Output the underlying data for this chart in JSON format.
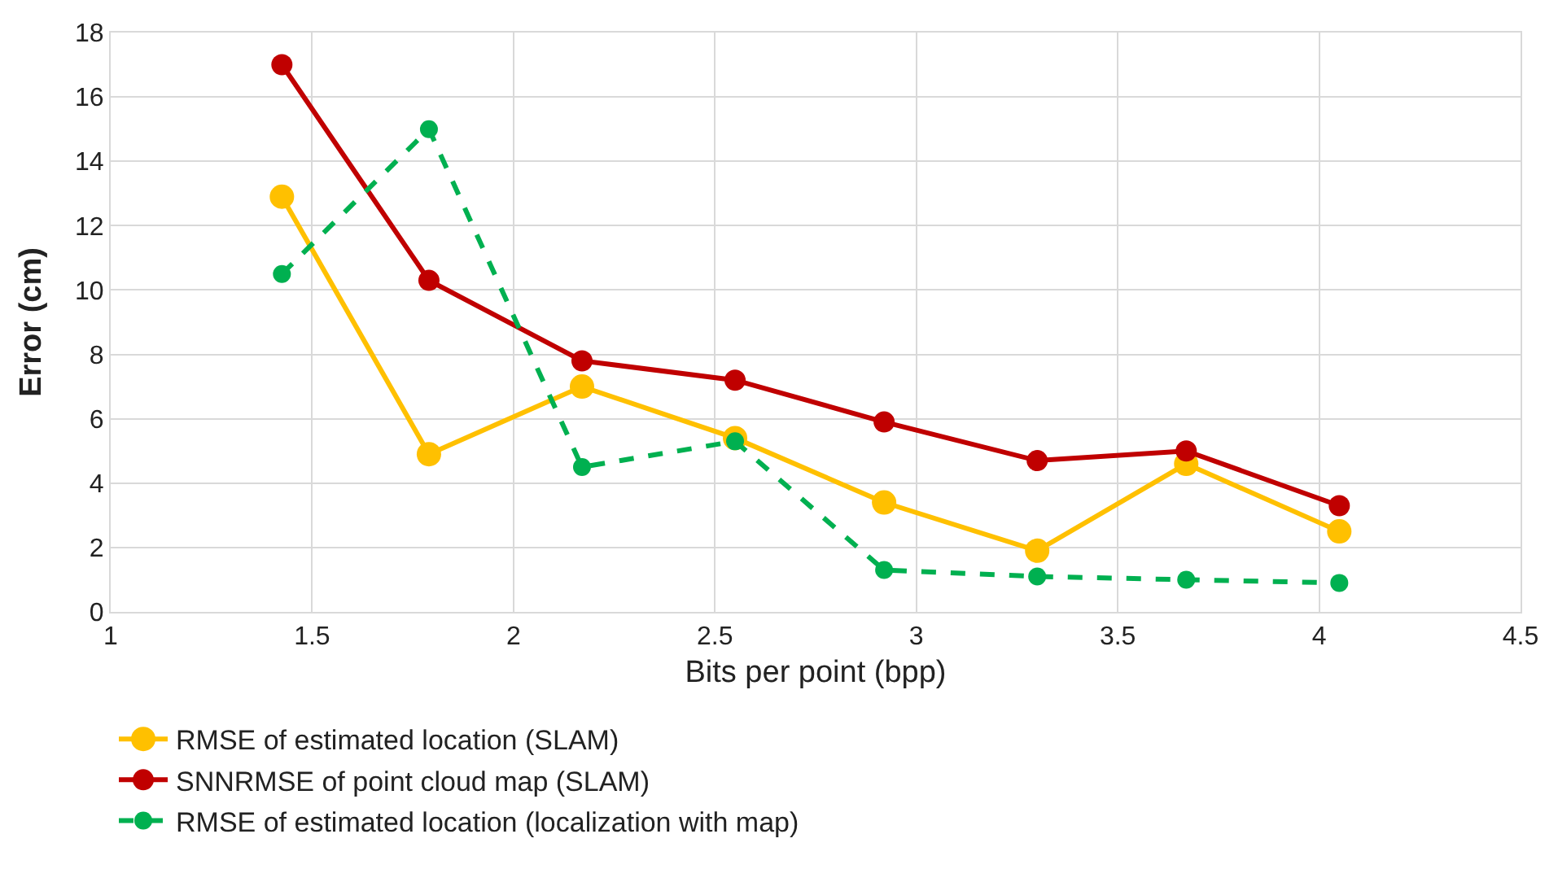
{
  "chart_data": {
    "type": "line",
    "xlabel": "Bits per point (bpp)",
    "ylabel": "Error (cm)",
    "x": [
      1.425,
      1.79,
      2.17,
      2.55,
      2.92,
      3.3,
      3.67,
      4.05
    ],
    "series": [
      {
        "name": "RMSE of estimated location (SLAM)",
        "color": "#ffc000",
        "values": [
          12.9,
          4.9,
          7.0,
          5.4,
          3.4,
          1.9,
          4.6,
          2.5
        ],
        "line_style": "solid"
      },
      {
        "name": "SNNRMSE of point cloud map (SLAM)",
        "color": "#c00000",
        "values": [
          17.0,
          10.3,
          7.8,
          7.2,
          5.9,
          4.7,
          5.0,
          3.3
        ],
        "line_style": "solid"
      },
      {
        "name": "RMSE of estimated location (localization with map)",
        "color": "#00b050",
        "values": [
          10.5,
          15.0,
          4.5,
          5.3,
          1.3,
          1.1,
          1.0,
          0.9
        ],
        "line_style": "dashed"
      }
    ],
    "xlim": [
      1,
      4.5
    ],
    "xticks": [
      1,
      1.5,
      2,
      2.5,
      3,
      3.5,
      4,
      4.5
    ],
    "ylim": [
      0,
      18
    ],
    "yticks": [
      0,
      2,
      4,
      6,
      8,
      10,
      12,
      14,
      16,
      18
    ],
    "grid": true,
    "legend": "bottom",
    "marker": "circle"
  }
}
